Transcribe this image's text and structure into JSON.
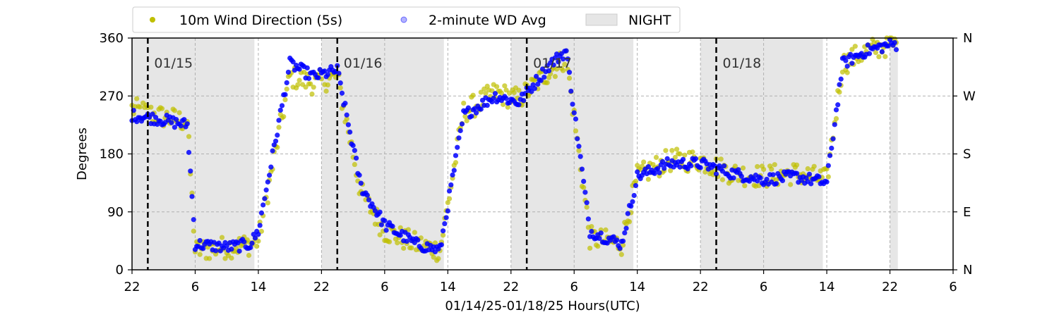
{
  "chart_data": {
    "type": "scatter",
    "xlabel": "01/14/25-01/18/25  Hours(UTC)",
    "ylabel": "Degrees",
    "ylim": [
      0,
      360
    ],
    "xlim": [
      "2025-01-14T22:00",
      "2025-01-19T06:00"
    ],
    "x_tick_labels": [
      "22",
      "6",
      "14",
      "22",
      "6",
      "14",
      "22",
      "6",
      "14",
      "22",
      "6",
      "14",
      "22",
      "6"
    ],
    "y_tick_labels": [
      "0",
      "90",
      "180",
      "270",
      "360"
    ],
    "y_right_tick_labels": [
      "N",
      "E",
      "S",
      "W",
      "N"
    ],
    "grid": true,
    "legend_position": "top",
    "legend": [
      {
        "label": "10m Wind Direction (5s)",
        "color": "#bfbf00",
        "marker": "circle"
      },
      {
        "label": "2-minute WD Avg",
        "color": "#0000ff",
        "marker": "circle"
      },
      {
        "label": "NIGHT",
        "color": "#e6e6e6",
        "marker": "rectangle"
      }
    ],
    "date_markers": [
      {
        "label": "01/15",
        "x": "2025-01-15T00:00"
      },
      {
        "label": "01/16",
        "x": "2025-01-16T00:00"
      },
      {
        "label": "01/17",
        "x": "2025-01-17T00:00"
      },
      {
        "label": "01/18",
        "x": "2025-01-18T00:00"
      }
    ],
    "night_periods": [
      [
        "2025-01-14T22:00",
        "2025-01-15T13:30"
      ],
      [
        "2025-01-15T22:00",
        "2025-01-16T13:30"
      ],
      [
        "2025-01-16T22:00",
        "2025-01-17T13:30"
      ],
      [
        "2025-01-17T22:00",
        "2025-01-18T13:30"
      ],
      [
        "2025-01-18T22:00",
        "2025-01-18T23:00"
      ]
    ],
    "series": [
      {
        "name": "10m Wind Direction (5s)",
        "color": "#bfbf00",
        "spread": 18,
        "x": [
          "2025-01-14T22:00",
          "2025-01-15T01:00",
          "2025-01-15T05:00",
          "2025-01-15T06:00",
          "2025-01-15T10:00",
          "2025-01-15T13:00",
          "2025-01-15T14:00",
          "2025-01-15T18:00",
          "2025-01-15T21:00",
          "2025-01-16T00:00",
          "2025-01-16T03:00",
          "2025-01-16T06:00",
          "2025-01-16T10:00",
          "2025-01-16T13:00",
          "2025-01-16T16:00",
          "2025-01-16T20:00",
          "2025-01-16T23:00",
          "2025-01-17T03:00",
          "2025-01-17T05:00",
          "2025-01-17T08:00",
          "2025-01-17T12:00",
          "2025-01-17T14:00",
          "2025-01-17T18:00",
          "2025-01-17T22:00",
          "2025-01-18T02:00",
          "2025-01-18T06:00",
          "2025-01-18T10:00",
          "2025-01-18T14:00",
          "2025-01-18T16:00",
          "2025-01-18T19:00",
          "2025-01-18T22:00",
          "2025-01-18T23:00"
        ],
        "values": [
          250,
          240,
          230,
          30,
          35,
          40,
          45,
          300,
          290,
          300,
          120,
          60,
          40,
          30,
          245,
          275,
          265,
          310,
          330,
          50,
          40,
          145,
          170,
          170,
          150,
          145,
          150,
          140,
          320,
          340,
          350,
          350
        ]
      },
      {
        "name": "2-minute WD Avg",
        "color": "#0000ff",
        "spread": 9,
        "x": [
          "2025-01-14T22:00",
          "2025-01-15T01:00",
          "2025-01-15T05:00",
          "2025-01-15T06:00",
          "2025-01-15T10:00",
          "2025-01-15T13:00",
          "2025-01-15T14:00",
          "2025-01-15T18:00",
          "2025-01-15T21:00",
          "2025-01-16T00:00",
          "2025-01-16T03:00",
          "2025-01-16T06:00",
          "2025-01-16T10:00",
          "2025-01-16T13:00",
          "2025-01-16T16:00",
          "2025-01-16T20:00",
          "2025-01-16T23:00",
          "2025-01-17T03:00",
          "2025-01-17T05:00",
          "2025-01-17T08:00",
          "2025-01-17T12:00",
          "2025-01-17T14:00",
          "2025-01-17T18:00",
          "2025-01-17T22:00",
          "2025-01-18T02:00",
          "2025-01-18T06:00",
          "2025-01-18T10:00",
          "2025-01-18T14:00",
          "2025-01-18T16:00",
          "2025-01-18T19:00",
          "2025-01-18T22:00",
          "2025-01-18T23:00"
        ],
        "values": [
          240,
          235,
          225,
          40,
          35,
          40,
          60,
          320,
          300,
          310,
          130,
          70,
          40,
          30,
          240,
          270,
          260,
          320,
          340,
          60,
          40,
          145,
          165,
          165,
          150,
          140,
          145,
          135,
          320,
          340,
          350,
          350
        ]
      }
    ]
  }
}
